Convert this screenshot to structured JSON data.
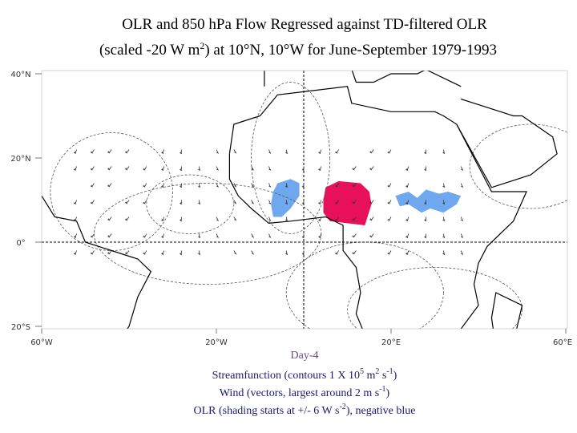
{
  "title": {
    "line1": "OLR and 850 hPa Flow Regressed against TD-filtered OLR",
    "line2": [
      "(scaled -20 W m",
      "2",
      ") at 10°N, 10°W for June-September 1979-1993"
    ]
  },
  "lat_labels": [
    "40°N",
    "20°N",
    "0°",
    "20°S"
  ],
  "lon_labels": [
    "60°W",
    "20°W",
    "20°E",
    "60°E"
  ],
  "caption": {
    "day": "Day-4",
    "streamfunction": [
      "Streamfunction (contours 1 X 10",
      "5",
      " m",
      "2",
      " s",
      "-1",
      ")"
    ],
    "wind": [
      "Wind (vectors, largest around 2 m s",
      "-1",
      ")"
    ],
    "olr": [
      "OLR (shading starts at +/- 6 W s",
      "-2",
      "), negative blue"
    ]
  }
}
